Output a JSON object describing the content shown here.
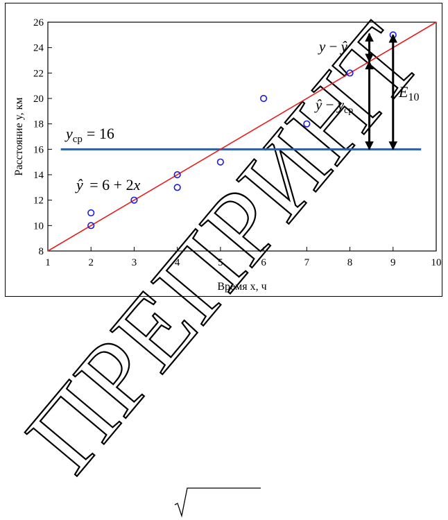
{
  "watermark": {
    "text": "ПРЕПРИНТ",
    "color": "#e6e6e6"
  },
  "chart_data": {
    "type": "scatter",
    "xlabel": "Время x, ч",
    "ylabel": "Расстояние y, км",
    "xlim": [
      1,
      10
    ],
    "ylim": [
      8,
      26
    ],
    "xticks": [
      1,
      2,
      3,
      4,
      5,
      6,
      7,
      8,
      9,
      10
    ],
    "yticks": [
      8,
      10,
      12,
      14,
      16,
      18,
      20,
      22,
      24,
      26
    ],
    "grid": false,
    "points": [
      {
        "x": 2,
        "y": 11
      },
      {
        "x": 2,
        "y": 10
      },
      {
        "x": 3,
        "y": 12
      },
      {
        "x": 4,
        "y": 14
      },
      {
        "x": 4,
        "y": 13
      },
      {
        "x": 5,
        "y": 15
      },
      {
        "x": 6,
        "y": 20
      },
      {
        "x": 7,
        "y": 18
      },
      {
        "x": 8,
        "y": 22
      },
      {
        "x": 9,
        "y": 25
      }
    ],
    "point_color": "#1a1ae6",
    "regression": {
      "intercept": 6,
      "slope": 2,
      "color": "#e62020"
    },
    "mean_line": {
      "y": 16,
      "x_from": 1.3,
      "x_to": 9.65,
      "color": "#2b5fa3"
    },
    "arrows": [
      {
        "x": 8.45,
        "y_from": 22.9,
        "y_to": 25.1
      },
      {
        "x": 8.45,
        "y_from": 16,
        "y_to": 22.9
      },
      {
        "x": 9,
        "y_from": 16,
        "y_to": 25
      }
    ],
    "annotations": {
      "regression_label": {
        "yhat": "ŷ",
        "rest": "= 6 + 2",
        "x": "x"
      },
      "mean_label": {
        "y": "y",
        "sub": "ср",
        "rest": "= 16"
      },
      "residual_label": {
        "y": "y",
        "minus": " − ",
        "yhat": "ŷ"
      },
      "explained_label": {
        "yhat": "ŷ",
        "minus": " − ",
        "y": "y",
        "sub": "ср"
      },
      "total_label": {
        "e": "E",
        "sub": "10"
      }
    }
  }
}
